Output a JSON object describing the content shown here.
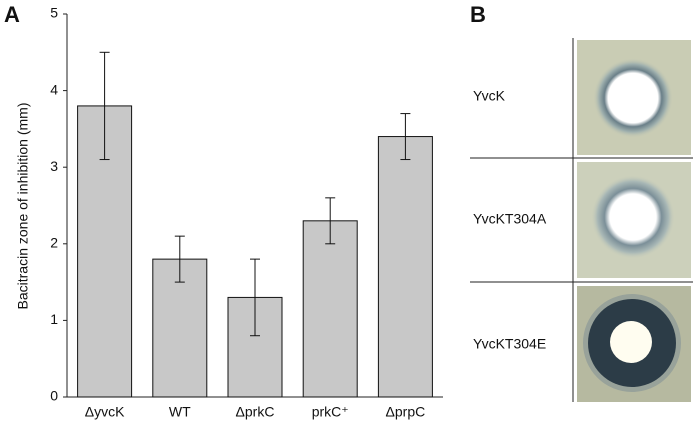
{
  "panels": [
    "A",
    "B"
  ],
  "chart_data": {
    "type": "bar",
    "y_label": "Bacitracin zone of inhibition (mm)",
    "categories": [
      "ΔyvcK",
      "WT",
      "ΔprkC",
      "prkC⁺",
      "ΔprpC"
    ],
    "values": [
      3.8,
      1.8,
      1.3,
      2.3,
      3.4
    ],
    "errors": [
      0.7,
      0.3,
      0.5,
      0.3,
      0.3
    ],
    "color": "#c8c8c8",
    "ylim": [
      0,
      5
    ],
    "yticks": [
      0,
      1,
      2,
      3,
      4,
      5
    ],
    "grid": false
  },
  "plate_panel": {
    "labels": [
      "YvcK",
      "YvcKT304A",
      "YvcKT304E"
    ]
  }
}
